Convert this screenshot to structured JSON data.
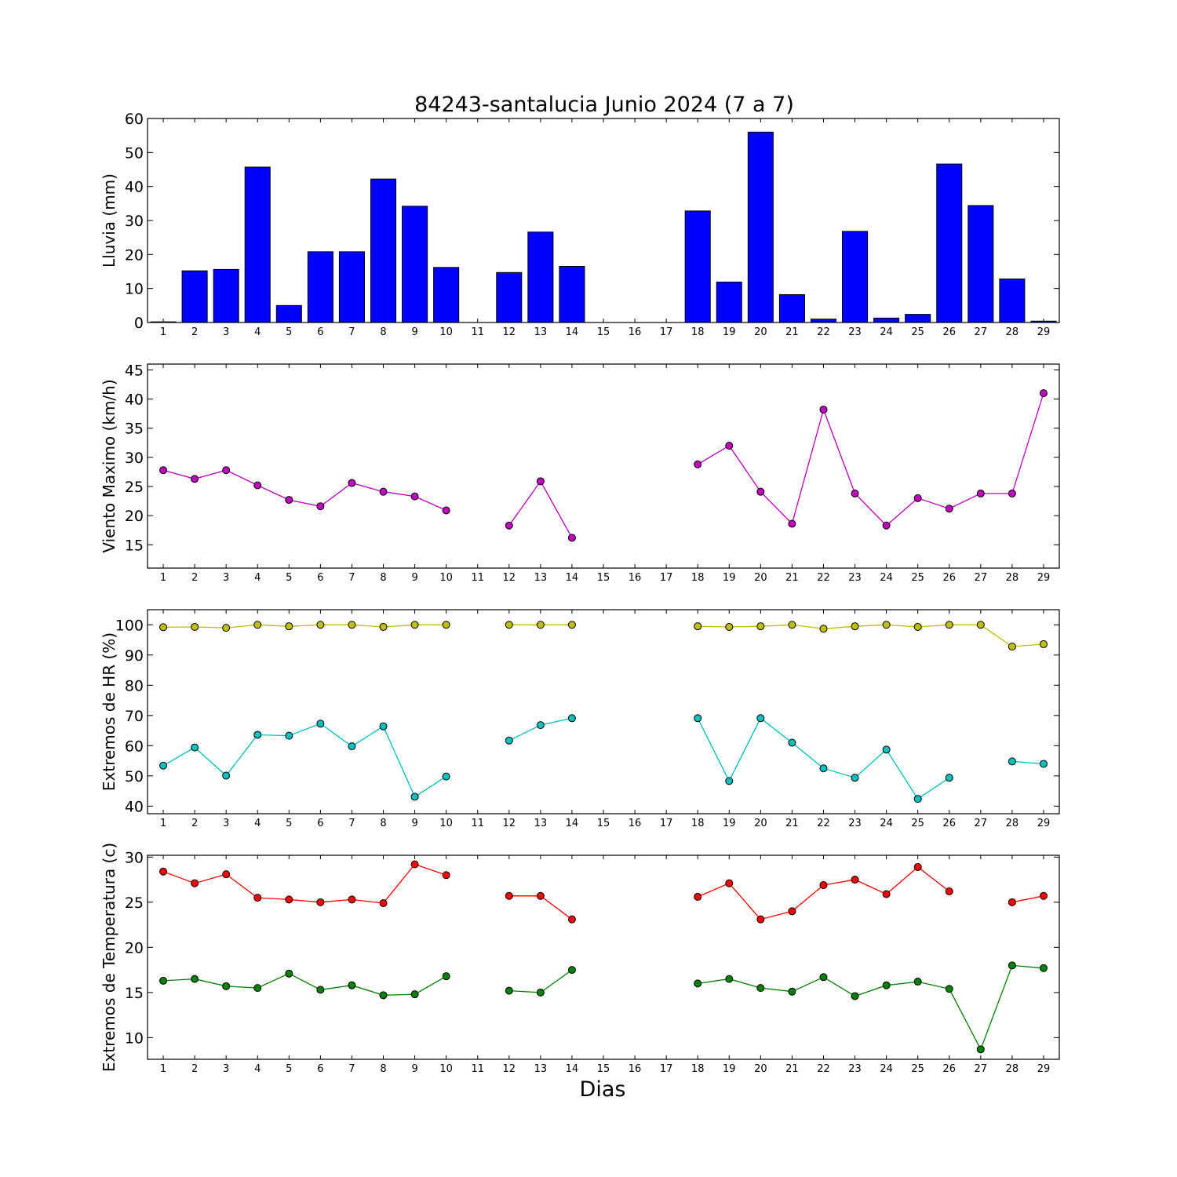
{
  "title": "84243-santalucia Junio 2024  (7 a 7)",
  "xlabel": "Dias",
  "colors": {
    "bar": "#0000ff",
    "wind": "#bf00bf",
    "hr_max": "#bfbf00",
    "hr_min": "#00bfbf",
    "temp_max": "#ff0000",
    "temp_min": "#008000"
  },
  "chart_data": [
    {
      "type": "bar",
      "ylabel": "Lluvia (mm)",
      "ylim": [
        0,
        60
      ],
      "yticks": [
        0,
        10,
        20,
        30,
        40,
        50,
        60
      ],
      "categories": [
        1,
        2,
        3,
        4,
        5,
        6,
        7,
        8,
        9,
        10,
        11,
        12,
        13,
        14,
        15,
        16,
        17,
        18,
        19,
        20,
        21,
        22,
        23,
        24,
        25,
        26,
        27,
        28,
        29
      ],
      "xtick_labels": [
        "1",
        "2",
        "3",
        "4",
        "5",
        "6",
        "7",
        "8",
        "9",
        "10",
        "11",
        "12",
        "13",
        "14",
        "15",
        "16",
        "17",
        "18",
        "19",
        "20",
        "21",
        "22",
        "23",
        "24",
        "25",
        "26",
        "27",
        "28",
        "29"
      ],
      "series": [
        {
          "color": "#0000ff",
          "values": [
            0.2,
            15.2,
            15.6,
            45.7,
            5.0,
            20.8,
            20.8,
            42.2,
            34.2,
            16.2,
            0,
            14.7,
            26.6,
            16.5,
            0,
            0,
            0,
            32.8,
            11.9,
            56.0,
            8.2,
            1.0,
            26.8,
            1.3,
            2.4,
            46.6,
            34.4,
            12.8,
            0.4
          ]
        }
      ]
    },
    {
      "type": "line",
      "ylabel": "Viento Maximo (km/h)",
      "ylim": [
        11,
        46
      ],
      "yticks": [
        15,
        20,
        25,
        30,
        35,
        40,
        45
      ],
      "x": [
        1,
        2,
        3,
        4,
        5,
        6,
        7,
        8,
        9,
        10,
        11,
        12,
        13,
        14,
        15,
        16,
        17,
        18,
        19,
        20,
        21,
        22,
        23,
        24,
        25,
        26,
        27,
        28,
        29
      ],
      "xtick_labels": [
        "1",
        "2",
        "3",
        "4",
        "5",
        "6",
        "7",
        "8",
        "9",
        "10",
        "11",
        "12",
        "13",
        "14",
        "15",
        "16",
        "17",
        "18",
        "19",
        "20",
        "21",
        "22",
        "23",
        "24",
        "25",
        "26",
        "27",
        "28",
        "29"
      ],
      "series": [
        {
          "color": "#bf00bf",
          "values": [
            27.8,
            26.3,
            27.8,
            25.2,
            22.7,
            21.6,
            25.6,
            24.1,
            23.3,
            20.9,
            null,
            18.3,
            25.9,
            16.2,
            null,
            null,
            null,
            28.8,
            32.0,
            24.1,
            18.6,
            38.2,
            23.8,
            18.3,
            23.0,
            21.2,
            23.8,
            23.8,
            41.0
          ]
        }
      ]
    },
    {
      "type": "line",
      "ylabel": "Extremos de HR (%)",
      "ylim": [
        37.5,
        105
      ],
      "yticks": [
        40,
        50,
        60,
        70,
        80,
        90,
        100
      ],
      "x": [
        1,
        2,
        3,
        4,
        5,
        6,
        7,
        8,
        9,
        10,
        11,
        12,
        13,
        14,
        15,
        16,
        17,
        18,
        19,
        20,
        21,
        22,
        23,
        24,
        25,
        26,
        27,
        28,
        29
      ],
      "xtick_labels": [
        "1",
        "2",
        "3",
        "4",
        "5",
        "6",
        "7",
        "8",
        "9",
        "10",
        "11",
        "12",
        "13",
        "14",
        "15",
        "16",
        "17",
        "18",
        "19",
        "20",
        "21",
        "22",
        "23",
        "24",
        "25",
        "26",
        "27",
        "28",
        "29"
      ],
      "series": [
        {
          "color": "#bfbf00",
          "values": [
            99.2,
            99.3,
            99.0,
            100.0,
            99.5,
            100.0,
            100.0,
            99.3,
            100.0,
            100.0,
            null,
            100.0,
            100.0,
            100.0,
            null,
            null,
            null,
            99.5,
            99.3,
            99.5,
            100.0,
            98.7,
            99.5,
            100.0,
            99.3,
            100.0,
            100.0,
            92.8,
            93.6
          ]
        },
        {
          "color": "#00bfbf",
          "values": [
            53.4,
            59.4,
            50.1,
            63.6,
            63.3,
            67.3,
            59.8,
            66.4,
            43.1,
            49.8,
            null,
            61.7,
            66.8,
            69.1,
            null,
            null,
            null,
            69.1,
            48.3,
            69.1,
            61.0,
            52.5,
            49.4,
            58.7,
            42.4,
            49.4,
            null,
            54.8,
            54.0
          ]
        }
      ]
    },
    {
      "type": "line",
      "ylabel": "Extremos de Temperatura (c)",
      "ylim": [
        7.6,
        30.2
      ],
      "yticks": [
        10,
        15,
        20,
        25,
        30
      ],
      "x": [
        1,
        2,
        3,
        4,
        5,
        6,
        7,
        8,
        9,
        10,
        11,
        12,
        13,
        14,
        15,
        16,
        17,
        18,
        19,
        20,
        21,
        22,
        23,
        24,
        25,
        26,
        27,
        28,
        29
      ],
      "xtick_labels": [
        "1",
        "2",
        "3",
        "4",
        "5",
        "6",
        "7",
        "8",
        "9",
        "10",
        "11",
        "12",
        "13",
        "14",
        "15",
        "16",
        "17",
        "18",
        "19",
        "20",
        "21",
        "22",
        "23",
        "24",
        "25",
        "26",
        "27",
        "28",
        "29"
      ],
      "series": [
        {
          "color": "#ff0000",
          "values": [
            28.4,
            27.1,
            28.1,
            25.5,
            25.3,
            25.0,
            25.3,
            24.9,
            29.2,
            28.0,
            null,
            25.7,
            25.7,
            23.1,
            null,
            null,
            null,
            25.6,
            27.1,
            23.1,
            24.0,
            26.9,
            27.5,
            25.9,
            28.9,
            26.2,
            null,
            25.0,
            25.7
          ]
        },
        {
          "color": "#008000",
          "values": [
            16.3,
            16.5,
            15.7,
            15.5,
            17.1,
            15.3,
            15.8,
            14.7,
            14.8,
            16.8,
            null,
            15.2,
            15.0,
            17.5,
            null,
            null,
            null,
            16.0,
            16.5,
            15.5,
            15.1,
            16.7,
            14.6,
            15.8,
            16.2,
            15.4,
            8.7,
            18.0,
            17.7
          ]
        }
      ]
    }
  ]
}
